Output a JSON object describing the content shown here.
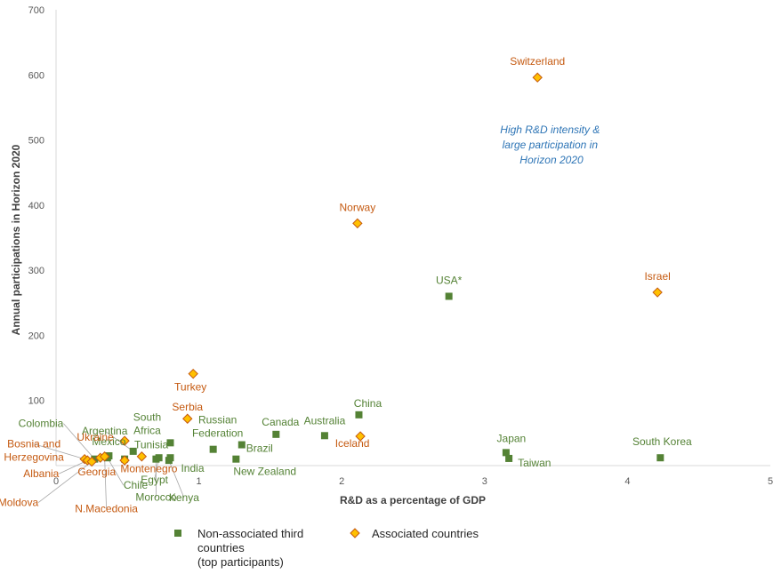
{
  "chart_data": {
    "type": "scatter",
    "title": "",
    "xlabel": "R&D  as a percentage of GDP",
    "ylabel": "Annual participations in Horizon 2020",
    "xlim": [
      0,
      5
    ],
    "ylim": [
      0,
      700
    ],
    "xticks": [
      "0",
      "1",
      "2",
      "3",
      "4",
      "5"
    ],
    "yticks": [
      "100",
      "200",
      "300",
      "400",
      "500",
      "600",
      "700"
    ],
    "grid": false,
    "annotation": [
      "High R&D intensity &",
      "large participation in",
      "Horizon 2020"
    ],
    "colors": {
      "non_associated": "#548235",
      "associated": "#ffc000",
      "associated_edge": "#c55a11",
      "associated_label": "#c55a11",
      "non_associated_label": "#548235",
      "annotation": "#2e75b6"
    },
    "legend": {
      "position": "bottom-left",
      "entries": [
        "Non-associated third countries (top participants)",
        "Associated countries"
      ],
      "non_associated_lines": [
        "Non-associated third",
        "countries",
        "(top participants)"
      ]
    },
    "series": [
      {
        "name": "Non-associated third countries (top participants)",
        "marker": "square",
        "points": [
          {
            "label": "USA*",
            "x": 2.75,
            "y": 260
          },
          {
            "label": "China",
            "x": 2.12,
            "y": 78
          },
          {
            "label": "Canada",
            "x": 1.54,
            "y": 48
          },
          {
            "label": "Australia",
            "x": 1.88,
            "y": 46
          },
          {
            "label": "South Korea",
            "x": 4.23,
            "y": 12
          },
          {
            "label": "Japan",
            "x": 3.15,
            "y": 20
          },
          {
            "label": "Taiwan",
            "x": 3.17,
            "y": 11
          },
          {
            "label": "Brazil",
            "x": 1.3,
            "y": 32
          },
          {
            "label": "Russian Federation",
            "x": 1.1,
            "y": 25
          },
          {
            "label": "New Zealand",
            "x": 1.26,
            "y": 10
          },
          {
            "label": "South Africa",
            "x": 0.8,
            "y": 35
          },
          {
            "label": "India",
            "x": 0.8,
            "y": 12
          },
          {
            "label": "Egypt",
            "x": 0.72,
            "y": 12
          },
          {
            "label": "Kenya",
            "x": 0.79,
            "y": 8
          },
          {
            "label": "Morocco",
            "x": 0.7,
            "y": 10
          },
          {
            "label": "Argentina",
            "x": 0.54,
            "y": 22
          },
          {
            "label": "Mexico",
            "x": 0.37,
            "y": 15
          },
          {
            "label": "Chile",
            "x": 0.36,
            "y": 12
          },
          {
            "label": "Colombia",
            "x": 0.27,
            "y": 10
          },
          {
            "label": "Tunisia",
            "x": 0.48,
            "y": 10
          }
        ]
      },
      {
        "name": "Associated countries",
        "marker": "diamond",
        "points": [
          {
            "label": "Switzerland",
            "x": 3.37,
            "y": 596
          },
          {
            "label": "Norway",
            "x": 2.11,
            "y": 372
          },
          {
            "label": "Israel",
            "x": 4.21,
            "y": 266
          },
          {
            "label": "Turkey",
            "x": 0.96,
            "y": 141
          },
          {
            "label": "Serbia",
            "x": 0.92,
            "y": 72
          },
          {
            "label": "Iceland",
            "x": 2.13,
            "y": 45
          },
          {
            "label": "Ukraine",
            "x": 0.48,
            "y": 38
          },
          {
            "label": "Montenegro",
            "x": 0.6,
            "y": 14
          },
          {
            "label": "Tunisia",
            "x": 0.48,
            "y": 8
          },
          {
            "label": "Bosnia and Herzegovina",
            "x": 0.2,
            "y": 10
          },
          {
            "label": "Georgia",
            "x": 0.31,
            "y": 12
          },
          {
            "label": "Albania",
            "x": 0.22,
            "y": 8
          },
          {
            "label": "Moldova",
            "x": 0.25,
            "y": 6
          },
          {
            "label": "N.Macedonia",
            "x": 0.34,
            "y": 14
          }
        ]
      }
    ]
  }
}
